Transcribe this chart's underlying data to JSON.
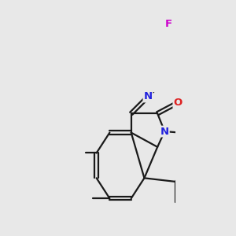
{
  "background_color": "#e8e8e8",
  "bond_color": "#1a1a1a",
  "bond_lw": 1.6,
  "dbl_off": 0.025,
  "atom_colors": {
    "F": "#cc00cc",
    "N": "#2222dd",
    "O": "#dd2222"
  },
  "font_size": 9.5,
  "figsize": [
    3.0,
    3.0
  ],
  "dpi": 100,
  "xlim": [
    -0.5,
    5.5
  ],
  "ylim": [
    -1.0,
    6.5
  ]
}
